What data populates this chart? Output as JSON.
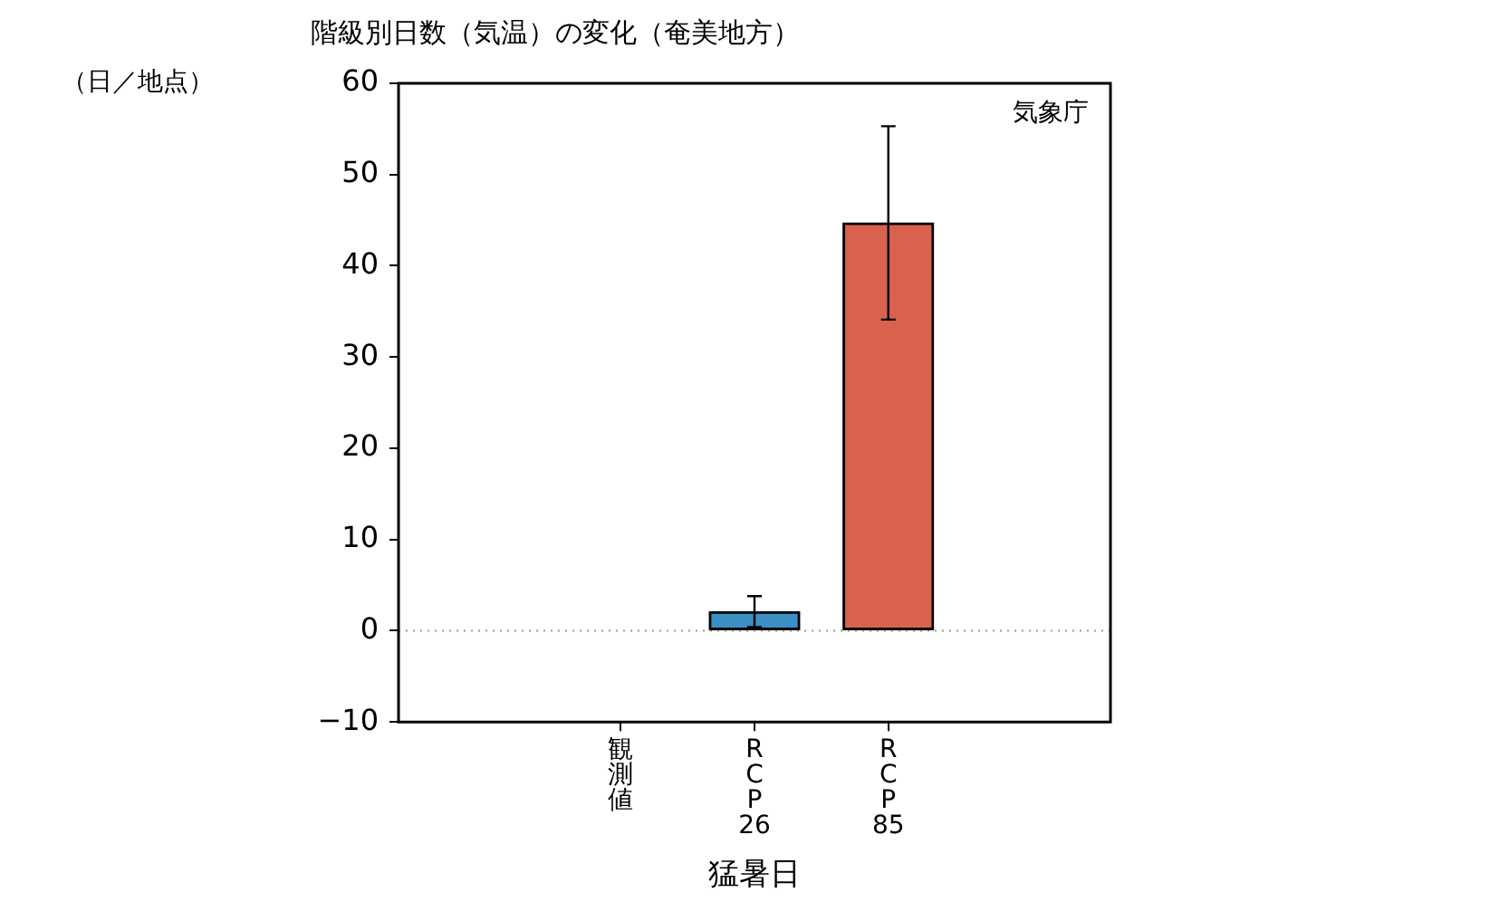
{
  "chart_data": {
    "type": "bar",
    "title": "階級別日数（気温）の変化（奄美地方）",
    "xlabel": "猛暑日",
    "ylabel": "（日／地点）",
    "categories": [
      "観測値",
      "RCP26",
      "RCP85"
    ],
    "values": [
      0,
      2.1,
      44.7
    ],
    "colors": [
      "#000000",
      "#3b8fc4",
      "#d9624f"
    ],
    "errors": [
      null,
      [
        0.4,
        3.8
      ],
      [
        34.1,
        55.3
      ]
    ],
    "ylim": [
      -10,
      60
    ],
    "yticks": [
      -10,
      0,
      10,
      20,
      30,
      40,
      50,
      60
    ],
    "ref_lines": [
      {
        "axis": "y",
        "value": 0,
        "color": "#999999",
        "line_style": "dotted"
      }
    ],
    "annotations": [
      "気象庁"
    ],
    "grid": false,
    "legend": false
  }
}
